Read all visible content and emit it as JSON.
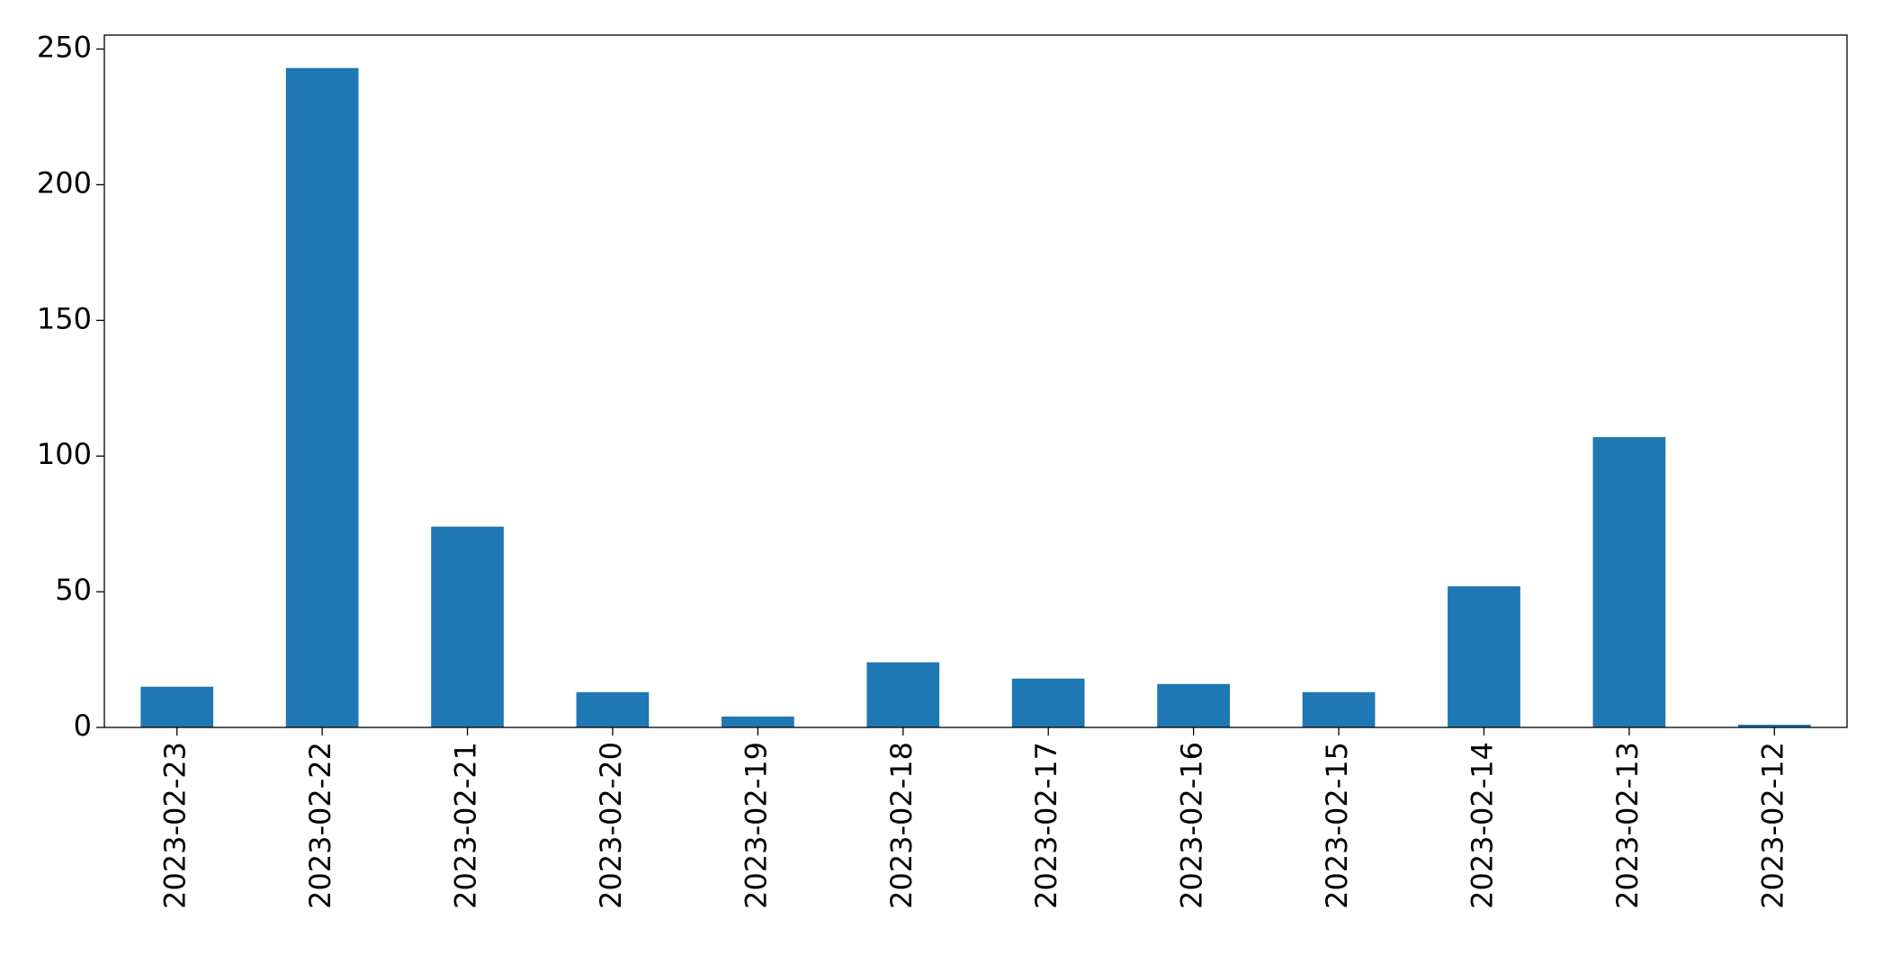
{
  "chart_data": {
    "type": "bar",
    "categories": [
      "2023-02-23",
      "2023-02-22",
      "2023-02-21",
      "2023-02-20",
      "2023-02-19",
      "2023-02-18",
      "2023-02-17",
      "2023-02-16",
      "2023-02-15",
      "2023-02-14",
      "2023-02-13",
      "2023-02-12"
    ],
    "values": [
      15,
      243,
      74,
      13,
      4,
      24,
      18,
      16,
      13,
      52,
      107,
      1
    ],
    "color": "#1f77b4",
    "ylim": [
      0,
      255.15
    ],
    "yticks": [
      0,
      50,
      100,
      150,
      200,
      250
    ],
    "grid": false
  }
}
